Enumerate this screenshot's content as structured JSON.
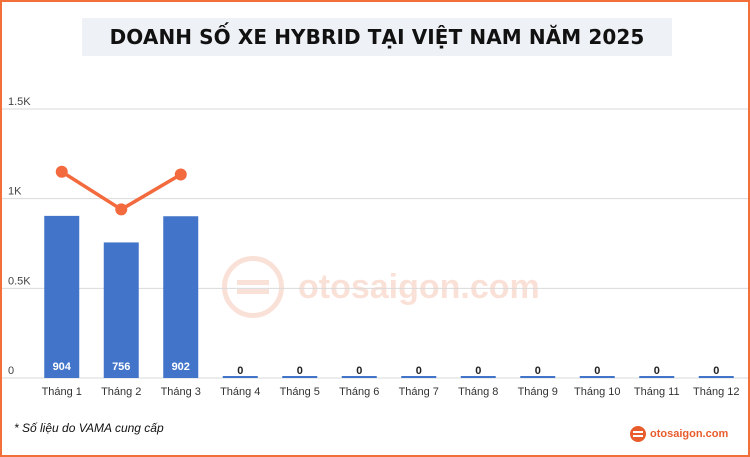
{
  "header": {
    "title": "DOANH SỐ XE HYBRID TẠI VIỆT NAM NĂM 2025"
  },
  "footnote": "* Số liệu do VAMA cung cấp",
  "brand": {
    "text": "otosaigon.com",
    "icon": "otosaigon-logo-icon"
  },
  "watermark": {
    "text": "otosaigon.com",
    "icon": "otosaigon-logo-icon"
  },
  "colors": {
    "bar": "#4274c9",
    "line": "#f26a3d",
    "accent_orange": "#f36f3a",
    "accent_blue": "#3f72c9",
    "grid": "#d9d9d9",
    "title_band": "#eef1f6"
  },
  "chart_data": {
    "type": "bar",
    "title": "DOANH SỐ XE HYBRID TẠI VIỆT NAM NĂM 2025",
    "categories": [
      "Tháng 1",
      "Tháng 2",
      "Tháng 3",
      "Tháng 4",
      "Tháng 5",
      "Tháng 6",
      "Tháng 7",
      "Tháng 8",
      "Tháng 9",
      "Tháng 10",
      "Tháng 11",
      "Tháng 12"
    ],
    "series": [
      {
        "type": "bar",
        "values": [
          904,
          756,
          902,
          0,
          0,
          0,
          0,
          0,
          0,
          0,
          0,
          0
        ]
      },
      {
        "type": "line",
        "values": [
          1150,
          940,
          1135,
          null,
          null,
          null,
          null,
          null,
          null,
          null,
          null,
          null
        ]
      }
    ],
    "data_labels": [
      "904",
      "756",
      "902",
      "0",
      "0",
      "0",
      "0",
      "0",
      "0",
      "0",
      "0",
      "0"
    ],
    "yticks": [
      {
        "value": 0,
        "label": "0"
      },
      {
        "value": 500,
        "label": "0.5K"
      },
      {
        "value": 1000,
        "label": "1K"
      },
      {
        "value": 1500,
        "label": "1.5K"
      }
    ],
    "ylim": [
      0,
      1500
    ],
    "grid": true,
    "legend": "none"
  }
}
